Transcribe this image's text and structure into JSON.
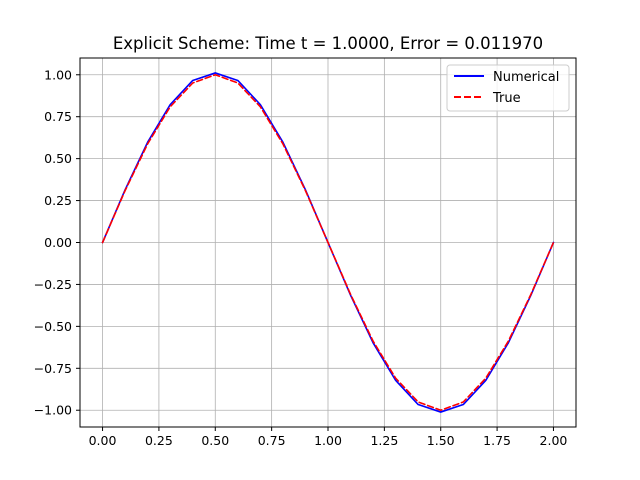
{
  "chart_data": {
    "type": "line",
    "title": "Explicit Scheme: Time t = 1.0000,  Error = 0.011970",
    "xlabel": "",
    "ylabel": "",
    "xlim": [
      -0.1,
      2.1
    ],
    "ylim": [
      -1.1,
      1.1
    ],
    "grid": true,
    "legend_position": "top-right",
    "x_ticks": [
      {
        "value": 0.0,
        "label": "0.00"
      },
      {
        "value": 0.25,
        "label": "0.25"
      },
      {
        "value": 0.5,
        "label": "0.50"
      },
      {
        "value": 0.75,
        "label": "0.75"
      },
      {
        "value": 1.0,
        "label": "1.00"
      },
      {
        "value": 1.25,
        "label": "1.25"
      },
      {
        "value": 1.5,
        "label": "1.50"
      },
      {
        "value": 1.75,
        "label": "1.75"
      },
      {
        "value": 2.0,
        "label": "2.00"
      }
    ],
    "y_ticks": [
      {
        "value": 1.0,
        "label": "1.00"
      },
      {
        "value": 0.75,
        "label": "0.75"
      },
      {
        "value": 0.5,
        "label": "0.50"
      },
      {
        "value": 0.25,
        "label": "0.25"
      },
      {
        "value": 0.0,
        "label": "0.00"
      },
      {
        "value": -0.25,
        "label": "−0.25"
      },
      {
        "value": -0.5,
        "label": "−0.50"
      },
      {
        "value": -0.75,
        "label": "−0.75"
      },
      {
        "value": -1.0,
        "label": "−1.00"
      }
    ],
    "x": [
      0.0,
      0.1,
      0.2,
      0.3,
      0.4,
      0.5,
      0.6,
      0.7,
      0.8,
      0.9,
      1.0,
      1.1,
      1.2,
      1.3,
      1.4,
      1.5,
      1.6,
      1.7,
      1.8,
      1.9,
      2.0
    ],
    "series": [
      {
        "name": "Numerical",
        "color": "#0000ff",
        "style": "solid",
        "values": [
          0.0,
          0.314,
          0.598,
          0.822,
          0.966,
          1.011,
          0.966,
          0.822,
          0.598,
          0.314,
          0.0,
          -0.314,
          -0.598,
          -0.822,
          -0.966,
          -1.011,
          -0.966,
          -0.822,
          -0.598,
          -0.314,
          0.0
        ]
      },
      {
        "name": "True",
        "color": "#ff0000",
        "style": "dashed",
        "values": [
          0.0,
          0.309,
          0.588,
          0.809,
          0.951,
          1.0,
          0.951,
          0.809,
          0.588,
          0.309,
          0.0,
          -0.309,
          -0.588,
          -0.809,
          -0.951,
          -1.0,
          -0.951,
          -0.809,
          -0.588,
          -0.309,
          0.0
        ]
      }
    ]
  }
}
